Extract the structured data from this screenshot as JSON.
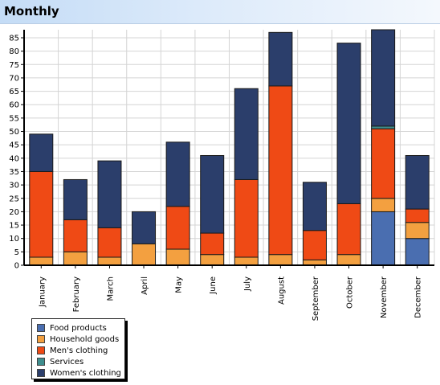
{
  "header": {
    "title": "Monthly"
  },
  "chart_data": {
    "type": "bar",
    "stacked": true,
    "categories": [
      "January",
      "February",
      "March",
      "April",
      "May",
      "June",
      "July",
      "August",
      "September",
      "October",
      "November",
      "December"
    ],
    "series": [
      {
        "name": "Food products",
        "color": "#4a6eb0",
        "values": [
          0,
          0,
          0,
          0,
          0,
          0,
          0,
          0,
          0,
          0,
          20,
          10
        ]
      },
      {
        "name": "Household goods",
        "color": "#f3a040",
        "values": [
          3,
          5,
          3,
          8,
          6,
          4,
          3,
          4,
          2,
          4,
          5,
          6
        ]
      },
      {
        "name": "Men's clothing",
        "color": "#ef4a15",
        "values": [
          32,
          12,
          11,
          0,
          16,
          8,
          29,
          63,
          11,
          19,
          26,
          5
        ]
      },
      {
        "name": "Services",
        "color": "#3f8e8e",
        "values": [
          0,
          0,
          0,
          0,
          0,
          0,
          0,
          0,
          0,
          0,
          1,
          0
        ]
      },
      {
        "name": "Women's clothing",
        "color": "#2b3e6b",
        "values": [
          14,
          15,
          25,
          12,
          24,
          29,
          34,
          20,
          18,
          60,
          36,
          20
        ]
      }
    ],
    "yticks": [
      0,
      5,
      10,
      15,
      20,
      25,
      30,
      35,
      40,
      45,
      50,
      55,
      60,
      65,
      70,
      75,
      80,
      85
    ],
    "ylim": [
      0,
      88
    ],
    "grid": true,
    "legend": "bottom-left"
  }
}
